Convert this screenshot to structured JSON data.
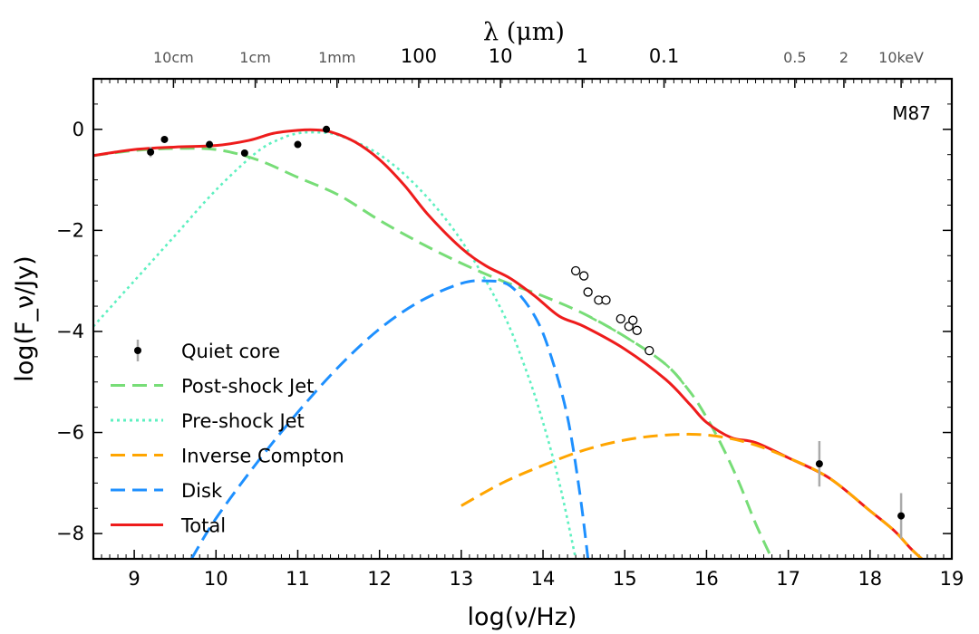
{
  "chart_data": {
    "type": "line",
    "title_top_axis": "λ (μm)",
    "xlabel": "log(ν/Hz)",
    "ylabel": "log(F_ν/Jy)",
    "annotation": "M87",
    "xlim": [
      8.5,
      19
    ],
    "ylim": [
      -8.5,
      1
    ],
    "x_ticks": [
      9,
      10,
      11,
      12,
      13,
      14,
      15,
      16,
      17,
      18,
      19
    ],
    "y_ticks": [
      0,
      -2,
      -4,
      -6,
      -8
    ],
    "y_tick_labels": [
      "0",
      "−2",
      "−4",
      "−6",
      "−8"
    ],
    "top_ticks": [
      {
        "label": "10cm",
        "x": 9.48,
        "style": "gray"
      },
      {
        "label": "1cm",
        "x": 10.48,
        "style": "gray"
      },
      {
        "label": "1mm",
        "x": 11.48,
        "style": "gray"
      },
      {
        "label": "100",
        "x": 12.48,
        "style": "black"
      },
      {
        "label": "10",
        "x": 13.48,
        "style": "black"
      },
      {
        "label": "1",
        "x": 14.48,
        "style": "black"
      },
      {
        "label": "0.1",
        "x": 15.48,
        "style": "black"
      },
      {
        "label": "0.5",
        "x": 17.08,
        "style": "gray"
      },
      {
        "label": "2",
        "x": 17.68,
        "style": "gray"
      },
      {
        "label": "10keV",
        "x": 18.38,
        "style": "gray"
      }
    ],
    "series": [
      {
        "name": "Post-shock Jet",
        "style": "dashed",
        "color": "#77dd77",
        "x": [
          8.5,
          9.0,
          9.5,
          10.0,
          10.5,
          11.0,
          11.5,
          12.0,
          12.5,
          13.0,
          13.5,
          14.0,
          14.5,
          15.0,
          15.5,
          15.8,
          16.0,
          16.2,
          16.4,
          16.6,
          16.8
        ],
        "y": [
          -0.52,
          -0.42,
          -0.38,
          -0.4,
          -0.6,
          -0.95,
          -1.3,
          -1.8,
          -2.25,
          -2.65,
          -3.0,
          -3.3,
          -3.65,
          -4.1,
          -4.65,
          -5.2,
          -5.7,
          -6.3,
          -7.0,
          -7.8,
          -8.5
        ]
      },
      {
        "name": "Pre-shock Jet",
        "style": "dotted",
        "color": "#5ef0c0",
        "x": [
          8.5,
          9.0,
          9.5,
          10.0,
          10.5,
          10.8,
          11.0,
          11.2,
          11.5,
          12.0,
          12.5,
          13.0,
          13.5,
          13.8,
          14.0,
          14.2,
          14.4
        ],
        "y": [
          -3.9,
          -3.0,
          -2.1,
          -1.2,
          -0.45,
          -0.18,
          -0.08,
          -0.06,
          -0.12,
          -0.5,
          -1.2,
          -2.2,
          -3.6,
          -4.8,
          -5.8,
          -7.0,
          -8.5
        ]
      },
      {
        "name": "Inverse Compton",
        "style": "dashed",
        "color": "#ffa500",
        "x": [
          13.0,
          13.5,
          14.0,
          14.5,
          15.0,
          15.5,
          16.0,
          16.5,
          17.0,
          17.5,
          18.0,
          18.3,
          18.5,
          18.7
        ],
        "y": [
          -7.45,
          -7.0,
          -6.65,
          -6.35,
          -6.15,
          -6.05,
          -6.05,
          -6.2,
          -6.5,
          -6.9,
          -7.55,
          -7.95,
          -8.3,
          -8.6
        ]
      },
      {
        "name": "Disk",
        "style": "dashed",
        "color": "#1e90ff",
        "x": [
          9.7,
          10.0,
          10.5,
          11.0,
          11.5,
          12.0,
          12.5,
          13.0,
          13.3,
          13.6,
          13.9,
          14.1,
          14.3,
          14.45,
          14.55
        ],
        "y": [
          -8.5,
          -7.7,
          -6.6,
          -5.6,
          -4.7,
          -3.95,
          -3.4,
          -3.05,
          -3.0,
          -3.1,
          -3.7,
          -4.5,
          -5.7,
          -7.2,
          -8.5
        ]
      },
      {
        "name": "Total",
        "style": "solid",
        "color": "#ee1c1c",
        "x": [
          8.5,
          9.0,
          9.5,
          10.0,
          10.4,
          10.7,
          11.0,
          11.2,
          11.4,
          11.7,
          12.0,
          12.3,
          12.6,
          13.0,
          13.3,
          13.6,
          13.9,
          14.2,
          14.5,
          15.0,
          15.5,
          15.8,
          16.0,
          16.3,
          16.6,
          17.0,
          17.5,
          18.0,
          18.3,
          18.5,
          18.7
        ],
        "y": [
          -0.52,
          -0.4,
          -0.35,
          -0.32,
          -0.22,
          -0.08,
          -0.02,
          -0.01,
          -0.05,
          -0.25,
          -0.6,
          -1.1,
          -1.7,
          -2.35,
          -2.7,
          -2.95,
          -3.3,
          -3.7,
          -3.9,
          -4.35,
          -4.95,
          -5.45,
          -5.8,
          -6.1,
          -6.2,
          -6.5,
          -6.9,
          -7.55,
          -7.95,
          -8.3,
          -8.6
        ]
      }
    ],
    "quiet_core_points": [
      {
        "x": 9.2,
        "y": -0.45,
        "err": 0.1
      },
      {
        "x": 9.37,
        "y": -0.2,
        "err": 0
      },
      {
        "x": 9.92,
        "y": -0.3,
        "err": 0
      },
      {
        "x": 10.35,
        "y": -0.47,
        "err": 0
      },
      {
        "x": 11.0,
        "y": -0.3,
        "err": 0
      },
      {
        "x": 11.35,
        "y": 0.0,
        "err": 0
      },
      {
        "x": 17.38,
        "y": -6.62,
        "err": 0.45
      },
      {
        "x": 18.38,
        "y": -7.65,
        "err": 0.45
      }
    ],
    "open_points": [
      {
        "x": 14.4,
        "y": -2.8
      },
      {
        "x": 14.5,
        "y": -2.9
      },
      {
        "x": 14.55,
        "y": -3.22
      },
      {
        "x": 14.68,
        "y": -3.38
      },
      {
        "x": 14.77,
        "y": -3.38
      },
      {
        "x": 14.95,
        "y": -3.75
      },
      {
        "x": 15.05,
        "y": -3.9
      },
      {
        "x": 15.1,
        "y": -3.78
      },
      {
        "x": 15.15,
        "y": -3.98
      },
      {
        "x": 15.3,
        "y": -4.38
      }
    ],
    "legend": {
      "placement": "lower-left",
      "entries": [
        {
          "label": "Quiet core",
          "kind": "errpoint",
          "color": "#000000"
        },
        {
          "label": "Post-shock Jet",
          "kind": "dashed",
          "color": "#77dd77"
        },
        {
          "label": "Pre-shock Jet",
          "kind": "dotted",
          "color": "#5ef0c0"
        },
        {
          "label": "Inverse Compton",
          "kind": "dashed",
          "color": "#ffa500"
        },
        {
          "label": "Disk",
          "kind": "dashed",
          "color": "#1e90ff"
        },
        {
          "label": "Total",
          "kind": "solid",
          "color": "#ee1c1c"
        }
      ]
    }
  }
}
